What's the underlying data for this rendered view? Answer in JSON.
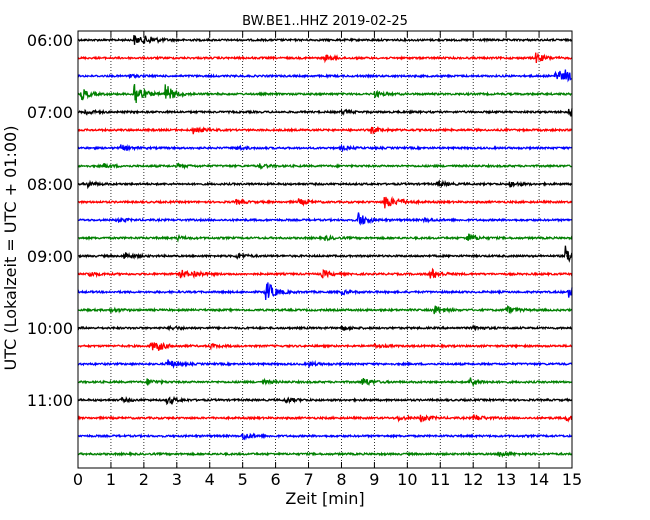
{
  "chart_data": {
    "type": "line",
    "title": "BW.BE1..HHZ 2019-02-25",
    "xlabel": "Zeit  [min]",
    "ylabel": "UTC (Lokalzeit = UTC + 01:00)",
    "xlim": [
      0,
      15
    ],
    "x_ticks": [
      "0",
      "1",
      "2",
      "3",
      "4",
      "5",
      "6",
      "7",
      "8",
      "9",
      "10",
      "11",
      "12",
      "13",
      "14",
      "15"
    ],
    "y_tick_labels": [
      "06:00",
      "07:00",
      "08:00",
      "09:00",
      "10:00",
      "11:00"
    ],
    "grid": "vertical dotted lines at each minute",
    "row_start": "06:00",
    "row_interval_minutes": 15,
    "color_cycle": [
      "#000000",
      "#ff0000",
      "#0000ff",
      "#008000"
    ],
    "traces": [
      {
        "row_time": "06:00",
        "color": "#000000",
        "events": [
          {
            "t": 1.7,
            "amp": 5
          },
          {
            "t": 2.0,
            "amp": 3
          },
          {
            "t": 2.2,
            "amp": 2
          }
        ]
      },
      {
        "row_time": "06:15",
        "color": "#ff0000",
        "events": [
          {
            "t": 7.5,
            "amp": 3
          },
          {
            "t": 13.9,
            "amp": 5
          }
        ]
      },
      {
        "row_time": "06:30",
        "color": "#0000ff",
        "events": [
          {
            "t": 14.5,
            "amp": 8
          },
          {
            "t": 14.8,
            "amp": 4
          },
          {
            "t": 1.5,
            "amp": 2
          }
        ]
      },
      {
        "row_time": "06:45",
        "color": "#008000",
        "events": [
          {
            "t": 0.1,
            "amp": 6
          },
          {
            "t": 1.7,
            "amp": 14
          },
          {
            "t": 2.65,
            "amp": 10
          },
          {
            "t": 9.0,
            "amp": 3
          }
        ]
      },
      {
        "row_time": "07:00",
        "color": "#000000",
        "events": [
          {
            "t": 0.2,
            "amp": 3
          },
          {
            "t": 14.9,
            "amp": 5
          },
          {
            "t": 8.0,
            "amp": 2
          }
        ]
      },
      {
        "row_time": "07:15",
        "color": "#ff0000",
        "events": [
          {
            "t": 3.5,
            "amp": 4
          },
          {
            "t": 8.9,
            "amp": 3
          }
        ]
      },
      {
        "row_time": "07:30",
        "color": "#0000ff",
        "events": [
          {
            "t": 1.3,
            "amp": 3
          },
          {
            "t": 4.8,
            "amp": 2
          },
          {
            "t": 8.0,
            "amp": 2
          }
        ]
      },
      {
        "row_time": "07:45",
        "color": "#008000",
        "events": [
          {
            "t": 0.8,
            "amp": 2
          },
          {
            "t": 3.0,
            "amp": 2
          },
          {
            "t": 5.5,
            "amp": 2
          }
        ]
      },
      {
        "row_time": "08:00",
        "color": "#000000",
        "events": [
          {
            "t": 0.3,
            "amp": 3
          },
          {
            "t": 10.9,
            "amp": 3
          },
          {
            "t": 13.1,
            "amp": 3
          }
        ]
      },
      {
        "row_time": "08:15",
        "color": "#ff0000",
        "events": [
          {
            "t": 9.3,
            "amp": 8
          },
          {
            "t": 6.7,
            "amp": 3
          },
          {
            "t": 4.8,
            "amp": 2
          },
          {
            "t": 9.7,
            "amp": 3
          }
        ]
      },
      {
        "row_time": "08:30",
        "color": "#0000ff",
        "events": [
          {
            "t": 8.5,
            "amp": 8
          },
          {
            "t": 1.2,
            "amp": 2
          },
          {
            "t": 10.5,
            "amp": 2
          }
        ]
      },
      {
        "row_time": "08:45",
        "color": "#008000",
        "events": [
          {
            "t": 11.8,
            "amp": 5
          },
          {
            "t": 3.0,
            "amp": 2
          },
          {
            "t": 7.5,
            "amp": 2
          }
        ]
      },
      {
        "row_time": "09:00",
        "color": "#000000",
        "events": [
          {
            "t": 14.8,
            "amp": 10
          },
          {
            "t": 1.4,
            "amp": 4
          },
          {
            "t": 4.8,
            "amp": 3
          }
        ]
      },
      {
        "row_time": "09:15",
        "color": "#ff0000",
        "events": [
          {
            "t": 3.1,
            "amp": 5
          },
          {
            "t": 10.7,
            "amp": 6
          },
          {
            "t": 0.3,
            "amp": 3
          },
          {
            "t": 7.4,
            "amp": 4
          },
          {
            "t": 3.5,
            "amp": 3
          }
        ]
      },
      {
        "row_time": "09:30",
        "color": "#0000ff",
        "events": [
          {
            "t": 5.7,
            "amp": 12
          },
          {
            "t": 14.9,
            "amp": 6
          },
          {
            "t": 8.0,
            "amp": 2
          }
        ]
      },
      {
        "row_time": "09:45",
        "color": "#008000",
        "events": [
          {
            "t": 10.8,
            "amp": 5
          },
          {
            "t": 13.0,
            "amp": 4
          },
          {
            "t": 1.0,
            "amp": 2
          }
        ]
      },
      {
        "row_time": "10:00",
        "color": "#000000",
        "events": [
          {
            "t": 2.8,
            "amp": 2
          },
          {
            "t": 8.0,
            "amp": 2
          },
          {
            "t": 12.0,
            "amp": 2
          }
        ]
      },
      {
        "row_time": "10:15",
        "color": "#ff0000",
        "events": [
          {
            "t": 2.2,
            "amp": 5
          },
          {
            "t": 2.4,
            "amp": 3
          },
          {
            "t": 4.0,
            "amp": 2
          },
          {
            "t": 9.0,
            "amp": 2
          }
        ]
      },
      {
        "row_time": "10:30",
        "color": "#0000ff",
        "events": [
          {
            "t": 2.7,
            "amp": 5
          },
          {
            "t": 7.0,
            "amp": 2
          }
        ]
      },
      {
        "row_time": "10:45",
        "color": "#008000",
        "events": [
          {
            "t": 8.6,
            "amp": 5
          },
          {
            "t": 11.9,
            "amp": 5
          },
          {
            "t": 2.1,
            "amp": 3
          },
          {
            "t": 5.6,
            "amp": 2
          }
        ]
      },
      {
        "row_time": "11:00",
        "color": "#000000",
        "events": [
          {
            "t": 2.7,
            "amp": 4
          },
          {
            "t": 6.3,
            "amp": 3
          },
          {
            "t": 1.3,
            "amp": 2
          }
        ]
      },
      {
        "row_time": "11:15",
        "color": "#ff0000",
        "events": [
          {
            "t": 10.4,
            "amp": 4
          },
          {
            "t": 12.0,
            "amp": 4
          },
          {
            "t": 14.8,
            "amp": 3
          },
          {
            "t": 9.7,
            "amp": 2
          }
        ]
      },
      {
        "row_time": "11:30",
        "color": "#0000ff",
        "events": [
          {
            "t": 5.0,
            "amp": 4
          }
        ]
      },
      {
        "row_time": "11:45",
        "color": "#008000",
        "events": [
          {
            "t": 12.8,
            "amp": 3
          }
        ]
      }
    ]
  }
}
